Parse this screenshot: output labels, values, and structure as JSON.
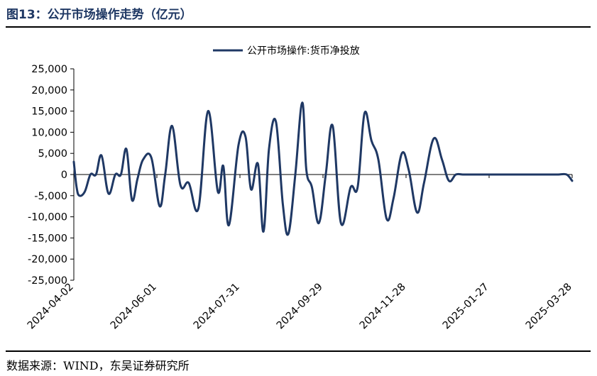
{
  "figure": {
    "title": "图13：公开市场操作走势（亿元）",
    "source": "数据来源：WIND，东吴证券研究所"
  },
  "colors": {
    "series": "#1f3864",
    "axis": "#000000",
    "title": "#1f3864"
  },
  "chart_data": {
    "type": "line",
    "title": "",
    "xlabel": "",
    "ylabel": "",
    "ylim": [
      -25000,
      25000
    ],
    "yticks": [
      -25000,
      -20000,
      -15000,
      -10000,
      -5000,
      0,
      5000,
      10000,
      15000,
      20000,
      25000
    ],
    "ytick_labels": [
      "-25,000",
      "-20,000",
      "-15,000",
      "-10,000",
      "-5,000",
      "0",
      "5,000",
      "10,000",
      "15,000",
      "20,000",
      "25,000"
    ],
    "xlim": [
      "2024-04-02",
      "2025-03-28"
    ],
    "xticks": [
      "2024-04-02",
      "2024-06-01",
      "2024-07-31",
      "2024-09-29",
      "2024-11-28",
      "2025-01-27",
      "2025-03-28"
    ],
    "grid": false,
    "legend": "top-center",
    "series": [
      {
        "name": "公开市场操作:货币净投放",
        "x": [
          "2024-04-02",
          "2024-04-04",
          "2024-04-06",
          "2024-04-10",
          "2024-04-14",
          "2024-04-18",
          "2024-04-22",
          "2024-04-27",
          "2024-05-02",
          "2024-05-06",
          "2024-05-10",
          "2024-05-14",
          "2024-05-18",
          "2024-05-22",
          "2024-05-28",
          "2024-06-03",
          "2024-06-07",
          "2024-06-12",
          "2024-06-18",
          "2024-06-24",
          "2024-07-01",
          "2024-07-08",
          "2024-07-15",
          "2024-07-19",
          "2024-07-23",
          "2024-07-30",
          "2024-08-04",
          "2024-08-08",
          "2024-08-13",
          "2024-08-17",
          "2024-08-21",
          "2024-08-26",
          "2024-08-31",
          "2024-09-04",
          "2024-09-09",
          "2024-09-14",
          "2024-09-17",
          "2024-09-21",
          "2024-09-26",
          "2024-10-01",
          "2024-10-06",
          "2024-10-12",
          "2024-10-19",
          "2024-10-24",
          "2024-10-29",
          "2024-11-03",
          "2024-11-08",
          "2024-11-14",
          "2024-11-19",
          "2024-11-25",
          "2024-11-30",
          "2024-12-06",
          "2024-12-11",
          "2024-12-18",
          "2024-12-24",
          "2024-12-29",
          "2025-01-03",
          "2025-01-08",
          "2025-01-14",
          "2025-01-19",
          "2025-01-24",
          "2025-01-30",
          "2025-02-05",
          "2025-02-10",
          "2025-02-16",
          "2025-02-22",
          "2025-02-28",
          "2025-03-06",
          "2025-03-12",
          "2025-03-18",
          "2025-03-24",
          "2025-03-28"
        ],
        "values": [
          3000,
          -3000,
          -5000,
          -4000,
          0,
          0,
          4500,
          -4500,
          0,
          0,
          6000,
          -6000,
          -1000,
          3500,
          4000,
          -7500,
          0,
          11500,
          -2500,
          -2000,
          -8000,
          15000,
          -4000,
          2000,
          -12000,
          7000,
          9000,
          -3500,
          2500,
          -13500,
          6000,
          12500,
          -7000,
          -14000,
          0,
          17000,
          1000,
          -3000,
          -11500,
          0,
          11500,
          -11500,
          -3000,
          -3000,
          14500,
          8000,
          3500,
          -10500,
          -5500,
          5000,
          1000,
          -9000,
          -2000,
          8500,
          3500,
          -1500,
          0,
          0,
          0,
          0,
          0,
          0,
          0,
          0,
          0,
          0,
          0,
          0,
          0,
          0,
          0,
          -1500
        ]
      }
    ]
  }
}
